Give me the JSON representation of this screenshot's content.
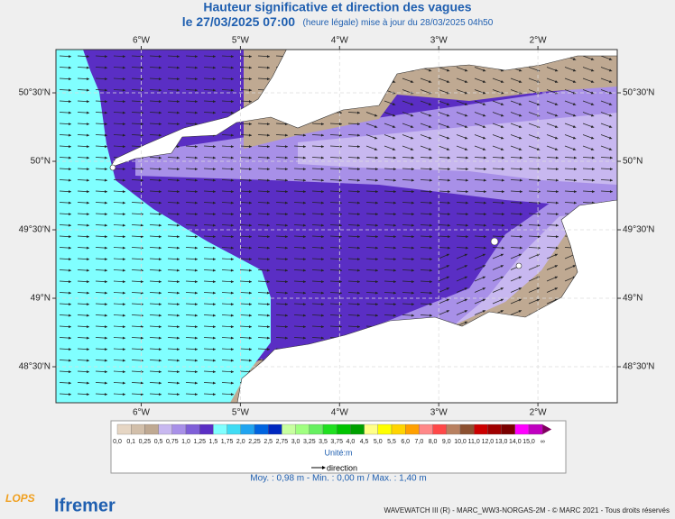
{
  "title": "Hauteur significative et direction des vagues",
  "subtitle": {
    "date": "le 27/03/2025 07:00",
    "note": "(heure légale) mise à jour du 28/03/2025 04h50"
  },
  "map": {
    "xlim": [
      -6.86,
      -1.2
    ],
    "ylim": [
      48.237,
      50.816
    ],
    "xticks": [
      {
        "value": -6,
        "label": "6°W"
      },
      {
        "value": -5,
        "label": "5°W"
      },
      {
        "value": -4,
        "label": "4°W"
      },
      {
        "value": -3,
        "label": "3°W"
      },
      {
        "value": -2,
        "label": "2°W"
      }
    ],
    "yticks": [
      {
        "value": 48.5,
        "label": "48°30'N"
      },
      {
        "value": 49,
        "label": "49°N"
      },
      {
        "value": 49.5,
        "label": "49°30'N"
      },
      {
        "value": 50,
        "label": "50°N"
      },
      {
        "value": 50.5,
        "label": "50°30'N"
      }
    ]
  },
  "legend": {
    "labels": [
      "0,0",
      "0,1",
      "0,25",
      "0,5",
      "0,75",
      "1,0",
      "1,25",
      "1,5",
      "1,75",
      "2,0",
      "2,25",
      "2,5",
      "2,75",
      "3,0",
      "3,25",
      "3,5",
      "3,75",
      "4,0",
      "4,5",
      "5,0",
      "5,5",
      "6,0",
      "7,0",
      "8,0",
      "9,0",
      "10,0",
      "11,0",
      "12,0",
      "13,0",
      "14,0",
      "15,0",
      "∞"
    ],
    "colors": [
      "#e6d6c4",
      "#d2bfaa",
      "#bfa992",
      "#c8b8f0",
      "#a890e8",
      "#7f5fd8",
      "#5a2ec4",
      "#80ffff",
      "#40dcf4",
      "#20a4f0",
      "#0064e0",
      "#0028c0",
      "#c8ffa0",
      "#a0ff80",
      "#66f060",
      "#20e020",
      "#00c400",
      "#00a000",
      "#ffff88",
      "#ffff00",
      "#ffd400",
      "#ffa000",
      "#ff8888",
      "#ff4848",
      "#b88060",
      "#8c5030",
      "#cc0000",
      "#a00000",
      "#7a0000",
      "#ff00ff",
      "#c000c0",
      "#800060"
    ],
    "unit": "Unité:m",
    "direction": "direction"
  },
  "stats": "Moy. : 0,98 m   -   Min. : 0,00 m / Max. : 1,40 m",
  "footer": "WAVEWATCH III (R) - MARC_WW3-NORGAS-2M - © MARC 2021 - Tous droits réservés",
  "logos": [
    "LOPS",
    "Ifremer"
  ]
}
